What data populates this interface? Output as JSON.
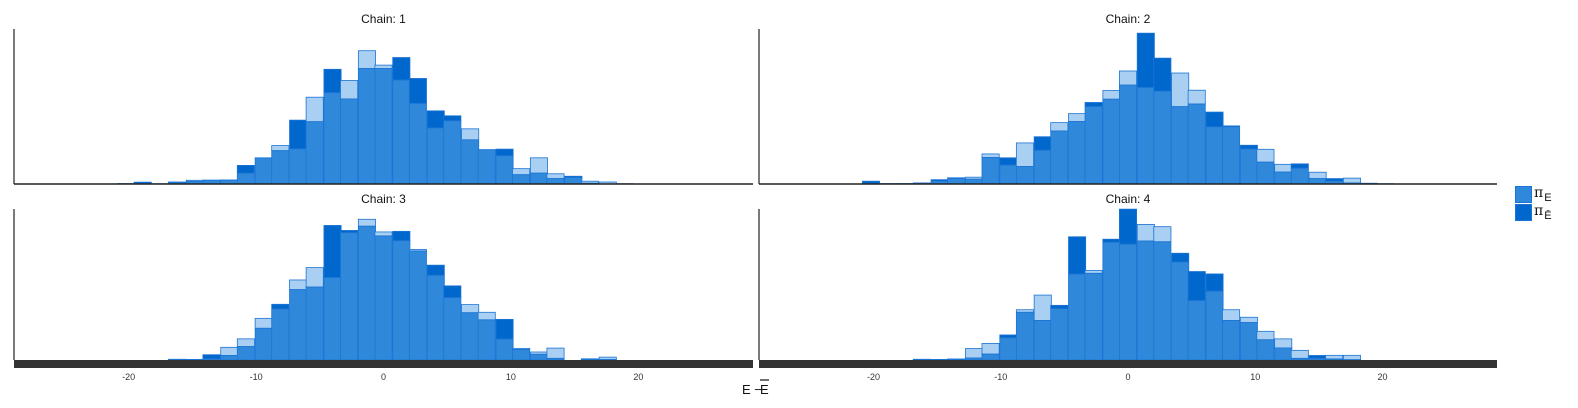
{
  "colors": {
    "pi_E": "#2f88da",
    "pi_E_bar": "#0068cc",
    "overlap_light": "#a9cff2",
    "edge": "#1c74d4",
    "axis_band": "#333333"
  },
  "chart_data": {
    "type": "bar",
    "xlabel": "E - Ē",
    "xlabel_parts": {
      "main": "E −",
      "overline": "E"
    },
    "xlim": [
      -29,
      29
    ],
    "xticks": [
      -20,
      -10,
      0,
      10,
      20
    ],
    "xtick_labels": [
      "-20",
      "-10",
      "0",
      "10",
      "20"
    ],
    "bin_width": 1.35,
    "legend": [
      {
        "symbol": "π",
        "sub": "E",
        "color": "#2f88da"
      },
      {
        "symbol": "π",
        "sub": "Ē",
        "color": "#0068cc"
      }
    ],
    "panels": [
      {
        "title": "Chain: 1",
        "bins": [
          {
            "x": -20.2,
            "a": 0.3,
            "b": 0.3
          },
          {
            "x": -18.9,
            "a": 0.3,
            "b": 1.2
          },
          {
            "x": -17.5,
            "a": 0.2,
            "b": 0.2
          },
          {
            "x": -16.2,
            "a": 1.3,
            "b": 0.9
          },
          {
            "x": -14.8,
            "a": 2.4,
            "b": 1.7
          },
          {
            "x": -13.5,
            "a": 2.4,
            "b": 2.5
          },
          {
            "x": -12.1,
            "a": 2.6,
            "b": 2.5
          },
          {
            "x": -10.8,
            "a": 7.0,
            "b": 12.0
          },
          {
            "x": -9.4,
            "a": 16.9,
            "b": 16.9
          },
          {
            "x": -8.1,
            "a": 24.8,
            "b": 21.5
          },
          {
            "x": -6.7,
            "a": 22.7,
            "b": 41.2
          },
          {
            "x": -5.4,
            "a": 56.0,
            "b": 40.2
          },
          {
            "x": -4.0,
            "a": 59.0,
            "b": 74.0
          },
          {
            "x": -2.7,
            "a": 66.8,
            "b": 54.9
          },
          {
            "x": -1.3,
            "a": 86.0,
            "b": 74.5
          },
          {
            "x": 0.0,
            "a": 76.7,
            "b": 74.5
          },
          {
            "x": 1.4,
            "a": 67.1,
            "b": 81.6
          },
          {
            "x": 2.7,
            "a": 52.0,
            "b": 68.1
          },
          {
            "x": 4.1,
            "a": 36.2,
            "b": 47.2
          },
          {
            "x": 5.4,
            "a": 40.8,
            "b": 44.0
          },
          {
            "x": 6.8,
            "a": 35.6,
            "b": 28.5
          },
          {
            "x": 8.1,
            "a": 22.2,
            "b": 22.2
          },
          {
            "x": 9.5,
            "a": 18.3,
            "b": 22.5
          },
          {
            "x": 10.8,
            "a": 9.9,
            "b": 6.0
          },
          {
            "x": 12.2,
            "a": 16.9,
            "b": 7.0
          },
          {
            "x": 13.5,
            "a": 6.6,
            "b": 3.5
          },
          {
            "x": 14.9,
            "a": 4.2,
            "b": 5.0
          },
          {
            "x": 16.2,
            "a": 1.8,
            "b": 0.5
          },
          {
            "x": 17.6,
            "a": 1.3,
            "b": 0.0
          },
          {
            "x": 18.9,
            "a": 0.2,
            "b": 0.2
          }
        ]
      },
      {
        "title": "Chain: 2",
        "bins": [
          {
            "x": -20.2,
            "a": 0.3,
            "b": 1.8
          },
          {
            "x": -18.9,
            "a": 0.3,
            "b": 0.3
          },
          {
            "x": -17.5,
            "a": 0.2,
            "b": 0.3
          },
          {
            "x": -16.2,
            "a": 0.7,
            "b": 0.7
          },
          {
            "x": -14.8,
            "a": 1.8,
            "b": 2.8
          },
          {
            "x": -13.5,
            "a": 3.5,
            "b": 4.0
          },
          {
            "x": -12.1,
            "a": 4.4,
            "b": 3.1
          },
          {
            "x": -10.8,
            "a": 19.4,
            "b": 17.1
          },
          {
            "x": -9.4,
            "a": 12.2,
            "b": 16.9
          },
          {
            "x": -8.1,
            "a": 26.5,
            "b": 11.3
          },
          {
            "x": -6.7,
            "a": 21.8,
            "b": 30.5
          },
          {
            "x": -5.4,
            "a": 39.6,
            "b": 34.2
          },
          {
            "x": -4.0,
            "a": 45.4,
            "b": 40.3
          },
          {
            "x": -2.7,
            "a": 50.0,
            "b": 52.6
          },
          {
            "x": -1.3,
            "a": 60.3,
            "b": 54.7
          },
          {
            "x": 0.0,
            "a": 72.9,
            "b": 63.8
          },
          {
            "x": 1.4,
            "a": 62.3,
            "b": 97.3
          },
          {
            "x": 2.7,
            "a": 59.9,
            "b": 81.2
          },
          {
            "x": 4.1,
            "a": 71.6,
            "b": 49.9
          },
          {
            "x": 5.4,
            "a": 60.5,
            "b": 51.6
          },
          {
            "x": 6.8,
            "a": 36.9,
            "b": 46.4
          },
          {
            "x": 8.1,
            "a": 36.9,
            "b": 37.5
          },
          {
            "x": 9.5,
            "a": 22.6,
            "b": 25.0
          },
          {
            "x": 10.8,
            "a": 22.4,
            "b": 14.1
          },
          {
            "x": 12.2,
            "a": 12.7,
            "b": 7.7
          },
          {
            "x": 13.5,
            "a": 10.2,
            "b": 13.0
          },
          {
            "x": 14.9,
            "a": 7.6,
            "b": 3.5
          },
          {
            "x": 16.2,
            "a": 1.9,
            "b": 3.5
          },
          {
            "x": 17.6,
            "a": 3.8,
            "b": 0.7
          },
          {
            "x": 18.9,
            "a": 0.5,
            "b": 0.3
          },
          {
            "x": 20.2,
            "a": 0.2,
            "b": 0.0
          }
        ]
      },
      {
        "title": "Chain: 3",
        "bins": [
          {
            "x": -16.2,
            "a": 0.5,
            "b": 0.3
          },
          {
            "x": -14.8,
            "a": 0.4,
            "b": 0.3
          },
          {
            "x": -13.5,
            "a": 0.8,
            "b": 3.5
          },
          {
            "x": -12.1,
            "a": 8.4,
            "b": 3.0
          },
          {
            "x": -10.8,
            "a": 14.0,
            "b": 8.9
          },
          {
            "x": -9.4,
            "a": 27.6,
            "b": 21.0
          },
          {
            "x": -8.1,
            "a": 33.8,
            "b": 36.9
          },
          {
            "x": -6.7,
            "a": 53.0,
            "b": 46.6
          },
          {
            "x": -5.4,
            "a": 61.2,
            "b": 48.3
          },
          {
            "x": -4.0,
            "a": 54.6,
            "b": 89.1
          },
          {
            "x": -2.7,
            "a": 84.3,
            "b": 85.8
          },
          {
            "x": -1.3,
            "a": 93.2,
            "b": 88.6
          },
          {
            "x": 0.0,
            "a": 84.8,
            "b": 82.2
          },
          {
            "x": 1.4,
            "a": 79.0,
            "b": 85.2
          },
          {
            "x": 2.7,
            "a": 73.2,
            "b": 72.2
          },
          {
            "x": 4.1,
            "a": 56.1,
            "b": 62.8
          },
          {
            "x": 5.4,
            "a": 41.3,
            "b": 49.1
          },
          {
            "x": 6.8,
            "a": 36.7,
            "b": 31.3
          },
          {
            "x": 8.1,
            "a": 31.6,
            "b": 26.6
          },
          {
            "x": 9.5,
            "a": 13.9,
            "b": 26.9
          },
          {
            "x": 10.8,
            "a": 7.7,
            "b": 7.0
          },
          {
            "x": 12.2,
            "a": 5.3,
            "b": 3.8
          },
          {
            "x": 13.5,
            "a": 7.9,
            "b": 1.1
          },
          {
            "x": 14.9,
            "a": 0.0,
            "b": 0.0
          },
          {
            "x": 16.2,
            "a": 0.8,
            "b": 0.3
          },
          {
            "x": 17.6,
            "a": 1.9,
            "b": 0.3
          }
        ]
      },
      {
        "title": "Chain: 4",
        "bins": [
          {
            "x": -16.2,
            "a": 0.5,
            "b": 0.3
          },
          {
            "x": -14.8,
            "a": 0.4,
            "b": 0.3
          },
          {
            "x": -13.5,
            "a": 0.7,
            "b": 0.2
          },
          {
            "x": -12.1,
            "a": 7.6,
            "b": 1.3
          },
          {
            "x": -10.8,
            "a": 11.0,
            "b": 3.9
          },
          {
            "x": -9.4,
            "a": 14.7,
            "b": 16.6
          },
          {
            "x": -8.1,
            "a": 33.3,
            "b": 31.6
          },
          {
            "x": -6.7,
            "a": 43.0,
            "b": 26.2
          },
          {
            "x": -5.4,
            "a": 34.0,
            "b": 36.2
          },
          {
            "x": -4.0,
            "a": 56.9,
            "b": 81.6
          },
          {
            "x": -2.7,
            "a": 59.3,
            "b": 57.4
          },
          {
            "x": -1.3,
            "a": 78.0,
            "b": 80.0
          },
          {
            "x": 0.0,
            "a": 76.7,
            "b": 99.9
          },
          {
            "x": 1.4,
            "a": 89.8,
            "b": 78.8
          },
          {
            "x": 2.7,
            "a": 88.3,
            "b": 78.3
          },
          {
            "x": 4.1,
            "a": 64.9,
            "b": 70.7
          },
          {
            "x": 5.4,
            "a": 39.4,
            "b": 58.6
          },
          {
            "x": 6.8,
            "a": 45.6,
            "b": 57.0
          },
          {
            "x": 8.1,
            "a": 33.3,
            "b": 26.2
          },
          {
            "x": 9.5,
            "a": 28.3,
            "b": 24.8
          },
          {
            "x": 10.8,
            "a": 19.0,
            "b": 13.4
          },
          {
            "x": 12.2,
            "a": 14.0,
            "b": 8.0
          },
          {
            "x": 13.5,
            "a": 6.4,
            "b": 1.1
          },
          {
            "x": 14.9,
            "a": 1.1,
            "b": 3.0
          },
          {
            "x": 16.2,
            "a": 3.1,
            "b": 0.7
          },
          {
            "x": 17.6,
            "a": 3.1,
            "b": 0.2
          }
        ]
      }
    ]
  }
}
